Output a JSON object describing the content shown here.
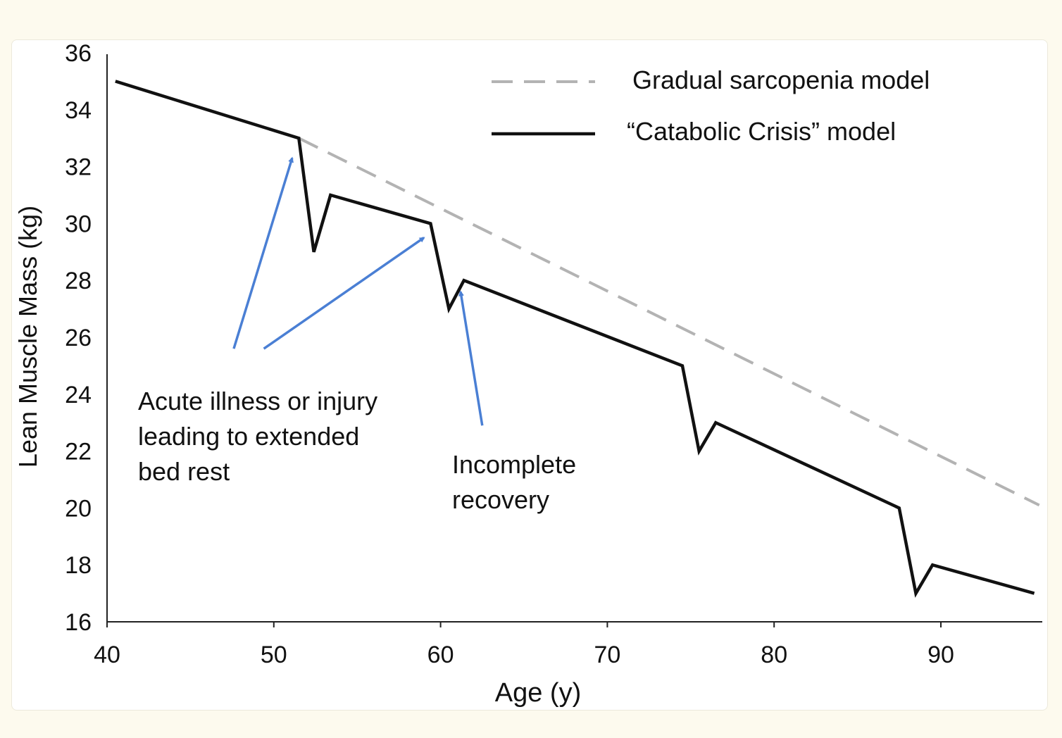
{
  "chart_data": {
    "type": "line",
    "title": "",
    "xlabel": "Age (y)",
    "ylabel": "Lean Muscle Mass (kg)",
    "xlim": [
      40,
      96
    ],
    "ylim": [
      16,
      36
    ],
    "xticks": [
      40,
      50,
      60,
      70,
      80,
      90
    ],
    "yticks": [
      16,
      18,
      20,
      22,
      24,
      26,
      28,
      30,
      32,
      34,
      36
    ],
    "grid": false,
    "legend_position": "top-right",
    "series": [
      {
        "name": "Gradual sarcopenia model",
        "style": "dashed",
        "color": "#b3b3b3",
        "points": [
          [
            51.5,
            33
          ],
          [
            95.9,
            20.1
          ]
        ]
      },
      {
        "name": "“Catabolic Crisis” model",
        "style": "solid",
        "color": "#111111",
        "points": [
          [
            40.5,
            35
          ],
          [
            51.5,
            33
          ],
          [
            52.4,
            29
          ],
          [
            53.4,
            31
          ],
          [
            59.4,
            30
          ],
          [
            60.5,
            27
          ],
          [
            61.4,
            28
          ],
          [
            74.5,
            25
          ],
          [
            75.5,
            22
          ],
          [
            76.5,
            23
          ],
          [
            87.5,
            20
          ],
          [
            88.5,
            17
          ],
          [
            89.5,
            18
          ],
          [
            95.6,
            17
          ]
        ]
      }
    ],
    "annotations": [
      {
        "text_lines": [
          "Acute illness or injury",
          "leading to extended",
          "bed rest"
        ],
        "arrows": [
          {
            "from": [
              47.6,
              25.6
            ],
            "to": [
              51.1,
              32.3
            ]
          },
          {
            "from": [
              49.4,
              25.6
            ],
            "to": [
              59.0,
              29.5
            ]
          }
        ]
      },
      {
        "text_lines": [
          "Incomplete",
          "recovery"
        ],
        "arrows": [
          {
            "from": [
              62.5,
              22.9
            ],
            "to": [
              61.2,
              27.6
            ]
          }
        ]
      }
    ],
    "arrow_color": "#4a7fd4"
  }
}
